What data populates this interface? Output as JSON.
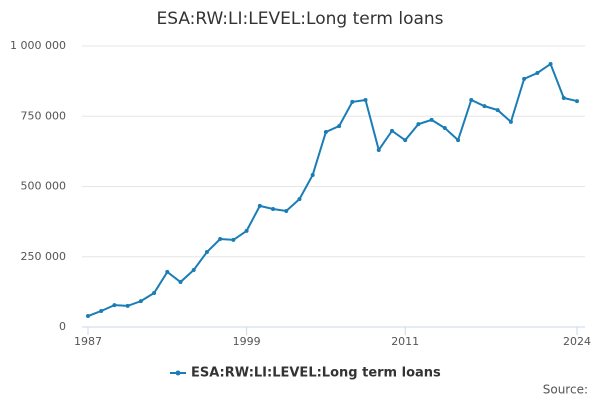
{
  "chart_data": {
    "type": "line",
    "title": "ESA:RW:LI:LEVEL:Long term loans",
    "x": [
      1987,
      1988,
      1989,
      1990,
      1991,
      1992,
      1993,
      1994,
      1995,
      1996,
      1997,
      1998,
      1999,
      2000,
      2001,
      2002,
      2003,
      2004,
      2005,
      2006,
      2007,
      2008,
      2009,
      2010,
      2011,
      2012,
      2013,
      2014,
      2015,
      2016,
      2017,
      2018,
      2019,
      2020,
      2021,
      2022,
      2023,
      2024
    ],
    "series": [
      {
        "name": "ESA:RW:LI:LEVEL:Long term loans",
        "color": "#1a7db6",
        "values": [
          39000,
          57000,
          78000,
          75000,
          92000,
          121000,
          196000,
          160000,
          203000,
          267000,
          313000,
          310000,
          342000,
          431000,
          420000,
          413000,
          455000,
          541000,
          694000,
          715000,
          801000,
          808000,
          630000,
          698000,
          665000,
          722000,
          737000,
          708000,
          665000,
          808000,
          786000,
          772000,
          730000,
          883000,
          904000,
          936000,
          815000,
          804000
        ]
      }
    ],
    "xlim": [
      1987,
      2024
    ],
    "xticks": [
      1987,
      1999,
      2011,
      2024
    ],
    "ylim": [
      0,
      1000000
    ],
    "yticks": [
      0,
      {
        "value": 250000,
        "label": "250 000"
      },
      {
        "value": 500000,
        "label": "500 000"
      },
      {
        "value": 750000,
        "label": "750 000"
      },
      {
        "value": 1000000,
        "label": "1 000 000"
      }
    ],
    "grid": true,
    "legend": "bottom",
    "source": "Source:"
  }
}
